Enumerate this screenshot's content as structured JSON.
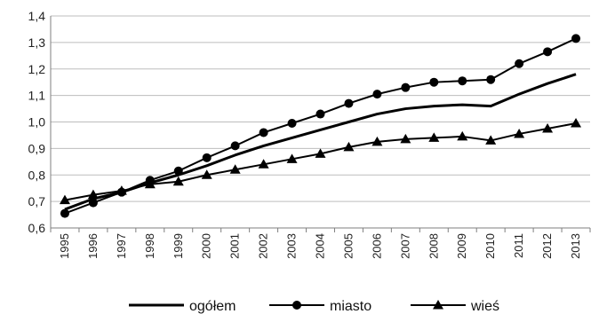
{
  "chart_data": {
    "type": "line",
    "title": "",
    "xlabel": "",
    "ylabel": "",
    "x": [
      "1995",
      "1996",
      "1997",
      "1998",
      "1999",
      "2000",
      "2001",
      "2002",
      "2003",
      "2004",
      "2005",
      "2006",
      "2007",
      "2008",
      "2009",
      "2010",
      "2011",
      "2012",
      "2013"
    ],
    "ylim": [
      0.6,
      1.4
    ],
    "yticks": [
      "0,6",
      "0,7",
      "0,8",
      "0,9",
      "1,0",
      "1,1",
      "1,2",
      "1,3",
      "1,4"
    ],
    "grid": true,
    "legend_position": "bottom",
    "series": [
      {
        "name": "ogółem",
        "marker": "none",
        "color": "#000000",
        "values": [
          0.67,
          0.71,
          0.735,
          0.77,
          0.8,
          0.835,
          0.875,
          0.91,
          0.94,
          0.97,
          1.0,
          1.03,
          1.05,
          1.06,
          1.065,
          1.06,
          1.105,
          1.145,
          1.18
        ]
      },
      {
        "name": "miasto",
        "marker": "circle",
        "color": "#000000",
        "values": [
          0.655,
          0.695,
          0.735,
          0.78,
          0.815,
          0.865,
          0.91,
          0.96,
          0.995,
          1.03,
          1.07,
          1.105,
          1.13,
          1.15,
          1.155,
          1.16,
          1.22,
          1.265,
          1.315
        ]
      },
      {
        "name": "wieś",
        "marker": "triangle",
        "color": "#000000",
        "values": [
          0.705,
          0.725,
          0.74,
          0.765,
          0.775,
          0.8,
          0.82,
          0.84,
          0.86,
          0.88,
          0.905,
          0.925,
          0.935,
          0.94,
          0.945,
          0.93,
          0.955,
          0.975,
          0.995
        ]
      }
    ]
  }
}
